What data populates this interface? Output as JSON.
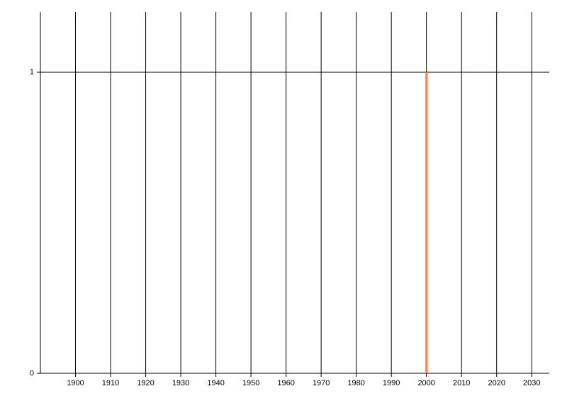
{
  "chart_data": {
    "type": "bar",
    "x": [
      2000
    ],
    "values": [
      1
    ],
    "color": "#ff7f3f",
    "xlim": [
      1890,
      2035
    ],
    "xticks": [
      1900,
      1910,
      1920,
      1930,
      1940,
      1950,
      1960,
      1970,
      1980,
      1990,
      2000,
      2010,
      2020,
      2030
    ],
    "ylim": [
      0,
      1.2
    ],
    "yticks": [
      0,
      1
    ],
    "grid": true
  }
}
